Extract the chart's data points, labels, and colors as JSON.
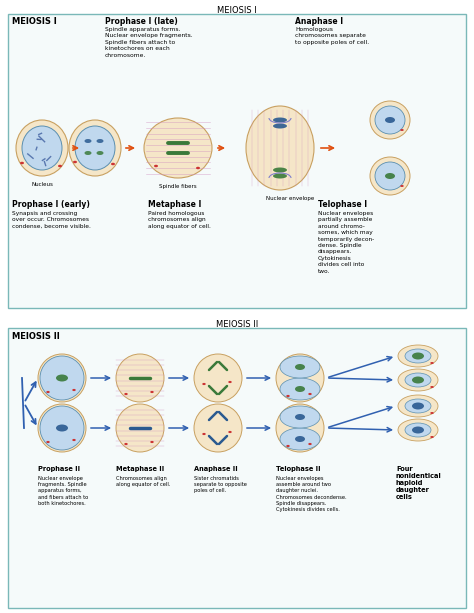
{
  "bg_color": "#ffffff",
  "meiosis1_section_label": "MEIOSIS I",
  "meiosis2_section_label": "MEIOSIS II",
  "box_edge_color": "#7ab8b8",
  "box_face_color": "#f5fafa",
  "cell_outer": "#f5e6c8",
  "cell_outer_edge": "#c8a060",
  "cell_inner": "#c0d8ee",
  "cell_inner_edge": "#5a8fb0",
  "chrom_green": "#3a7a3a",
  "chrom_blue": "#2a5a90",
  "chrom_pink": "#cc3333",
  "spindle_color": "#d090c0",
  "arrow_orange": "#e05010",
  "arrow_blue": "#3060b0",
  "meiosis1_bold": "MEIOSIS I",
  "meiosis2_bold": "MEIOSIS II",
  "prophase_late_title": "Prophase I (late)",
  "prophase_late_body": "Spindle apparatus forms.\nNuclear envelope fragments.\nSpindle fibers attach to\nkinetochores on each\nchromosome.",
  "anaphase1_title": "Anaphase I",
  "anaphase1_body": "Homologous\nchromosomes separate\nto opposite poles of cell.",
  "nucleus_label": "Nucleus",
  "spindle_label": "Spindle fibers",
  "nuclear_env_label": "Nuclear envelope",
  "prophase_early_title": "Prophase I (early)",
  "prophase_early_body": "Synapsis and crossing\nover occur. Chromosomes\ncondense, become visible.",
  "metaphase1_title": "Metaphase I",
  "metaphase1_body": "Paired homologous\nchromosomes align\nalong equator of cell.",
  "telophase1_title": "Telophase I",
  "telophase1_body": "Nuclear envelopes\npartially assemble\naround chromo-\nsomes, which may\ntemporarily decon-\ndense. Spindle\ndisappears.\nCytokinesis\ndivides cell into\ntwo.",
  "prophase2_title": "Prophase II",
  "prophase2_body": "Nuclear envelope\nfragments. Spindle\napparatus forms,\nand fibers attach to\nboth kinetochores.",
  "metaphase2_title": "Metaphase II",
  "metaphase2_body": "Chromosomes align\nalong equator of cell.",
  "anaphase2_title": "Anaphase II",
  "anaphase2_body": "Sister chromatids\nseparate to opposite\npoles of cell.",
  "telophase2_title": "Telophase II",
  "telophase2_body": "Nuclear envelopes\nassemble around two\ndaughter nuclei.\nChromosomes decondense.\nSpindle disappears.\nCytokinesis divides cells.",
  "four_title": "Four\nnonidentical\nhaploid\ndaughter\ncells"
}
